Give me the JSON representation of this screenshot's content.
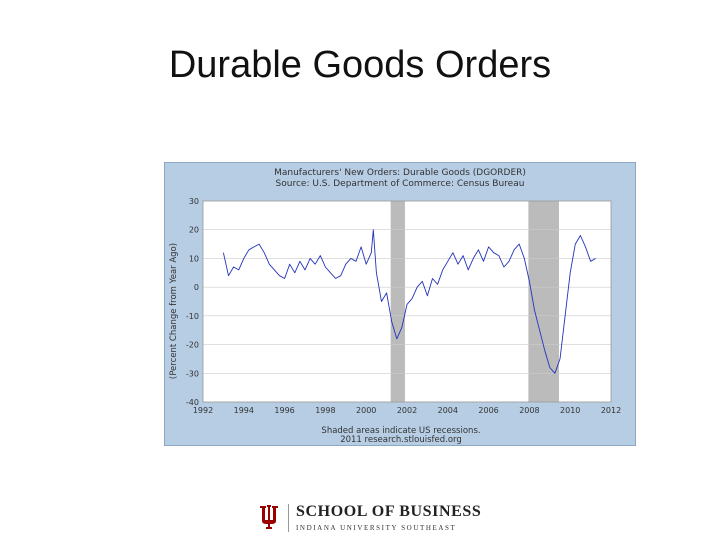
{
  "slide": {
    "title": "Durable Goods Orders"
  },
  "footer": {
    "school": "SCHOOL OF BUSINESS",
    "campus": "INDIANA UNIVERSITY SOUTHEAST",
    "logo_icon": "iu-trident-icon",
    "brand_color": "#990000"
  },
  "chart_data": {
    "type": "line",
    "title": "Manufacturers' New Orders: Durable Goods (DGORDER)",
    "subtitle": "Source: U.S. Department of Commerce: Census Bureau",
    "xlabel": "",
    "ylabel": "(Percent Change from Year Ago)",
    "xlim": [
      1992,
      2012
    ],
    "ylim": [
      -40,
      30
    ],
    "x_ticks": [
      1992,
      1994,
      1996,
      1998,
      2000,
      2002,
      2004,
      2006,
      2008,
      2010,
      2012
    ],
    "y_ticks": [
      30,
      20,
      10,
      0,
      -10,
      -20,
      -30,
      -40
    ],
    "grid": true,
    "footnote": "Shaded areas indicate US recessions.",
    "source_line": "2011 research.stlouisfed.org",
    "colors": {
      "line": "#2233bb",
      "panel": "#b6cde4",
      "plot_bg": "#ffffff",
      "grid": "#cccccc",
      "recession": "#bbbbbb"
    },
    "recessions": [
      [
        2001.2,
        2001.9
      ],
      [
        2007.95,
        2009.45
      ]
    ],
    "series": [
      {
        "x": [
          1993.0,
          1993.25,
          1993.5,
          1993.75,
          1994.0,
          1994.25,
          1994.5,
          1994.75,
          1995.0,
          1995.25,
          1995.5,
          1995.75,
          1996.0,
          1996.25,
          1996.5,
          1996.75,
          1997.0,
          1997.25,
          1997.5,
          1997.75,
          1998.0,
          1998.25,
          1998.5,
          1998.75,
          1999.0,
          1999.25,
          1999.5,
          1999.75,
          2000.0,
          2000.25,
          2000.35,
          2000.5,
          2000.75,
          2001.0,
          2001.25,
          2001.5,
          2001.75,
          2002.0,
          2002.25,
          2002.5,
          2002.75,
          2003.0,
          2003.25,
          2003.5,
          2003.75,
          2004.0,
          2004.25,
          2004.5,
          2004.75,
          2005.0,
          2005.25,
          2005.5,
          2005.75,
          2006.0,
          2006.25,
          2006.5,
          2006.75,
          2007.0,
          2007.25,
          2007.5,
          2007.75,
          2008.0,
          2008.25,
          2008.5,
          2008.75,
          2009.0,
          2009.25,
          2009.5,
          2009.75,
          2010.0,
          2010.25,
          2010.5,
          2010.75,
          2011.0,
          2011.25
        ],
        "y": [
          12,
          4,
          7,
          6,
          10,
          13,
          14,
          15,
          12,
          8,
          6,
          4,
          3,
          8,
          5,
          9,
          6,
          10,
          8,
          11,
          7,
          5,
          3,
          4,
          8,
          10,
          9,
          14,
          8,
          12,
          20,
          5,
          -5,
          -2,
          -12,
          -18,
          -14,
          -6,
          -4,
          0,
          2,
          -3,
          3,
          1,
          6,
          9,
          12,
          8,
          11,
          6,
          10,
          13,
          9,
          14,
          12,
          11,
          7,
          9,
          13,
          15,
          10,
          2,
          -8,
          -15,
          -22,
          -28,
          -30,
          -25,
          -10,
          5,
          15,
          18,
          14,
          9,
          10
        ]
      }
    ]
  }
}
